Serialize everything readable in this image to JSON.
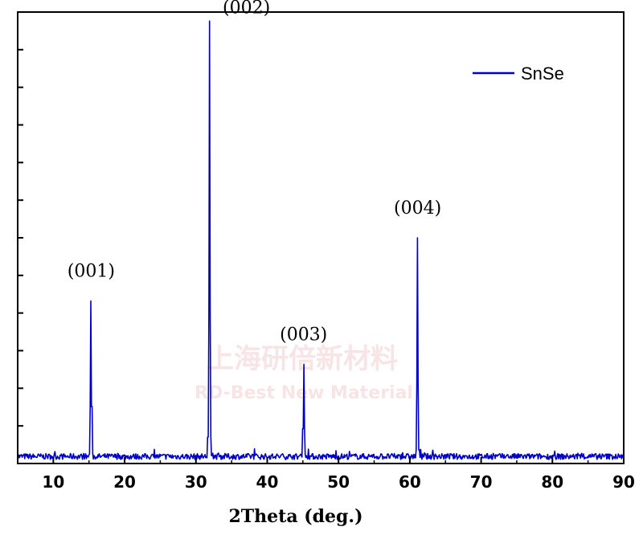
{
  "chart_data": {
    "type": "line",
    "xlabel": "2Theta (deg.)",
    "ylabel": "",
    "xlim": [
      5,
      90
    ],
    "ylim": [
      0,
      100
    ],
    "x_ticks": [
      10,
      20,
      30,
      40,
      50,
      60,
      70,
      80,
      90
    ],
    "y_tick_count": 12,
    "grid": false,
    "legend_position": "top-right",
    "series": [
      {
        "name": "SnSe",
        "color": "#0000cc",
        "peaks": [
          {
            "x": 15.3,
            "y": 36
          },
          {
            "x": 31.9,
            "y": 98
          },
          {
            "x": 45.1,
            "y": 22
          },
          {
            "x": 61.1,
            "y": 50
          }
        ]
      }
    ],
    "annotations": [
      {
        "text": "(001)",
        "x": 15.3
      },
      {
        "text": "(002)",
        "x": 31.9
      },
      {
        "text": "(003)",
        "x": 45.1
      },
      {
        "text": "(004)",
        "x": 61.1
      }
    ],
    "watermark": [
      "上海研倍新材料",
      "RD-Best New Material"
    ]
  }
}
